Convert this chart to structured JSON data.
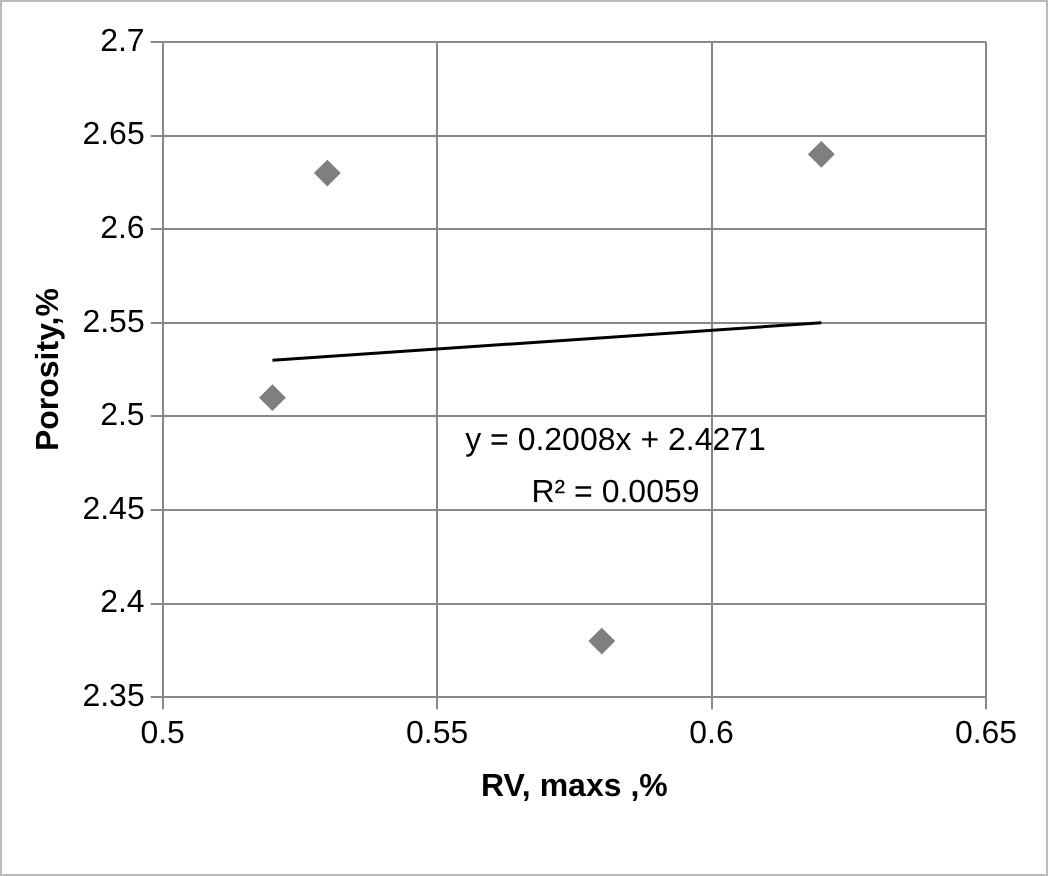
{
  "chart_data": {
    "type": "scatter",
    "xlabel": "RV, maxs ,%",
    "ylabel": "Porosity,%",
    "xlim": [
      0.5,
      0.65
    ],
    "xticks": [
      0.5,
      0.55,
      0.6,
      0.65
    ],
    "ylim": [
      2.35,
      2.7
    ],
    "yticks": [
      2.35,
      2.4,
      2.45,
      2.5,
      2.55,
      2.6,
      2.65,
      2.7
    ],
    "grid": true,
    "legend": false,
    "series": [
      {
        "type": "scatter",
        "marker": "diamond",
        "color": "#7f7f7f",
        "x": [
          0.52,
          0.53,
          0.58,
          0.62
        ],
        "values": [
          2.51,
          2.63,
          2.38,
          2.64
        ]
      },
      {
        "type": "line",
        "color": "#000000",
        "x": [
          0.52,
          0.62
        ],
        "values": [
          2.53,
          2.55
        ]
      }
    ],
    "annotations": [
      "y = 0.2008x + 2.4271",
      "R² = 0.0059"
    ]
  }
}
